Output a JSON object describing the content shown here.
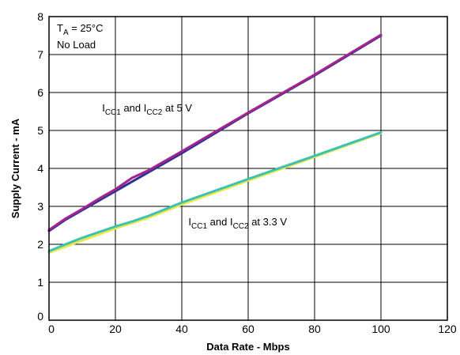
{
  "chart_data": {
    "type": "line",
    "xlabel": "Data Rate - Mbps",
    "ylabel": "Supply Current - mA",
    "xlim": [
      0,
      120
    ],
    "ylim": [
      0,
      8
    ],
    "x_ticks": [
      "0",
      "20",
      "40",
      "60",
      "80",
      "100",
      "120"
    ],
    "y_ticks": [
      "0",
      "1",
      "2",
      "3",
      "4",
      "5",
      "6",
      "7",
      "8"
    ],
    "grid": true,
    "conditions": {
      "ta_symbol": "T",
      "ta_sub": "A",
      "ta_value": "= 25°C",
      "load": "No Load"
    },
    "annotations": [
      {
        "parts": [
          [
            "I",
            ""
          ],
          [
            "CC1",
            "sub"
          ],
          [
            " and I",
            ""
          ],
          [
            "CC2",
            "sub"
          ],
          [
            " at 5 V",
            ""
          ]
        ],
        "x": 16,
        "y": 5.5
      },
      {
        "parts": [
          [
            "I",
            ""
          ],
          [
            "CC1",
            "sub"
          ],
          [
            " and I",
            ""
          ],
          [
            "CC2",
            "sub"
          ],
          [
            " at 3.3 V",
            ""
          ]
        ],
        "x": 42,
        "y": 2.5
      }
    ],
    "series": [
      {
        "color": "#2e3192",
        "x": [
          0,
          5,
          10,
          15,
          20,
          25,
          30,
          40,
          60,
          80,
          100
        ],
        "y": [
          2.35,
          2.65,
          2.9,
          3.15,
          3.4,
          3.65,
          3.9,
          4.4,
          5.45,
          6.45,
          7.5
        ]
      },
      {
        "color": "#a3248e",
        "x": [
          0,
          5,
          10,
          15,
          20,
          25,
          30,
          40,
          60,
          80,
          100
        ],
        "y": [
          2.38,
          2.68,
          2.93,
          3.2,
          3.45,
          3.75,
          3.95,
          4.45,
          5.47,
          6.47,
          7.52
        ]
      },
      {
        "color": "#e8e84a",
        "x": [
          0,
          10,
          20,
          30,
          40,
          60,
          80,
          100
        ],
        "y": [
          1.78,
          2.1,
          2.42,
          2.7,
          3.05,
          3.68,
          4.3,
          4.93
        ]
      },
      {
        "color": "#3cc1b3",
        "x": [
          0,
          5,
          10,
          15,
          20,
          25,
          30,
          40,
          60,
          80,
          100
        ],
        "y": [
          1.82,
          2.0,
          2.17,
          2.32,
          2.47,
          2.6,
          2.75,
          3.1,
          3.72,
          4.33,
          4.95
        ]
      }
    ]
  }
}
